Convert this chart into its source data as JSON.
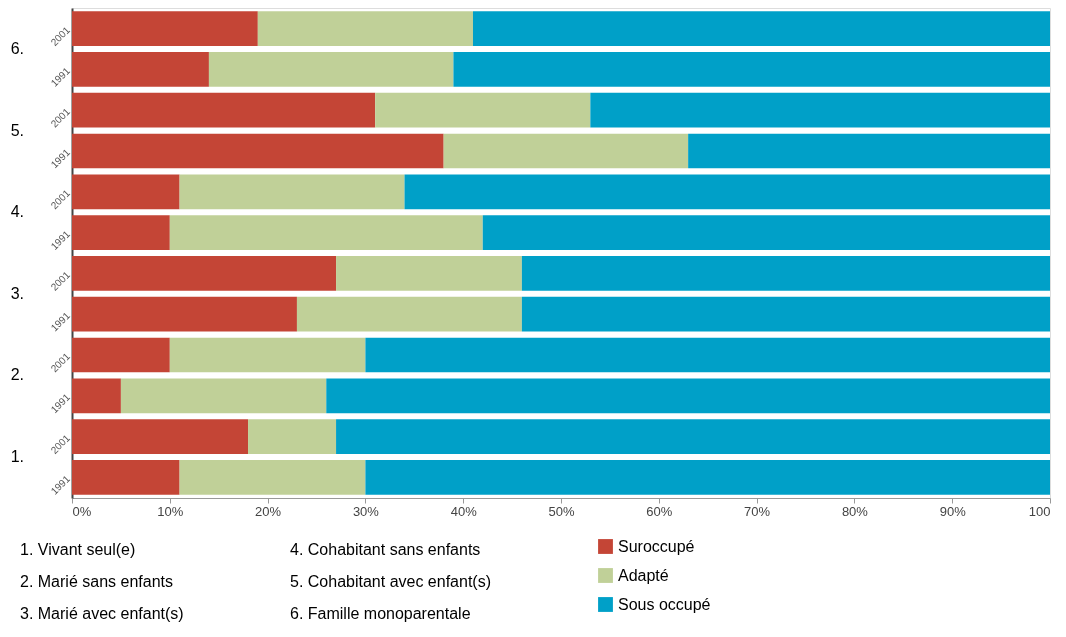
{
  "chart_data": {
    "type": "bar",
    "orientation": "horizontal",
    "stacked": true,
    "categories": [
      "2001",
      "1991",
      "2001",
      "1991",
      "2001",
      "1991",
      "2001",
      "1991",
      "2001",
      "1991",
      "2001",
      "1991"
    ],
    "series": [
      {
        "name": "Suroccupé",
        "color": "#c44536",
        "values": [
          19,
          14,
          31,
          38,
          11,
          10,
          27,
          23,
          10,
          5,
          18,
          11
        ]
      },
      {
        "name": "Adapté",
        "color": "#c0d098",
        "values": [
          22,
          25,
          22,
          25,
          23,
          32,
          19,
          23,
          20,
          21,
          9,
          19
        ]
      },
      {
        "name": "Sous occupé",
        "color": "#00a0c8",
        "values": [
          59,
          61,
          47,
          37,
          66,
          58,
          54,
          54,
          70,
          74,
          73,
          70
        ]
      }
    ],
    "xlim": [
      0,
      100
    ],
    "xticks": [
      {
        "value": 0,
        "label": "0%"
      },
      {
        "value": 10,
        "label": "10%"
      },
      {
        "value": 20,
        "label": "20%"
      },
      {
        "value": 30,
        "label": "30%"
      },
      {
        "value": 40,
        "label": "40%"
      },
      {
        "value": 50,
        "label": "50%"
      },
      {
        "value": 60,
        "label": "60%"
      },
      {
        "value": 70,
        "label": "70%"
      },
      {
        "value": 80,
        "label": "80%"
      },
      {
        "value": 90,
        "label": "90%"
      },
      {
        "value": 100,
        "label": "100"
      }
    ],
    "annotations": [
      "6.",
      "5.",
      "4.",
      "3.",
      "2.",
      "1.",
      "1. Vivant seul(e)",
      "2. Marié sans enfants",
      "3. Marié avec enfant(s)",
      "4. Cohabitant sans enfants",
      "5. Cohabitant avec enfant(s)",
      "6. Famille monoparentale"
    ],
    "grid": false,
    "legend": "bottom"
  }
}
